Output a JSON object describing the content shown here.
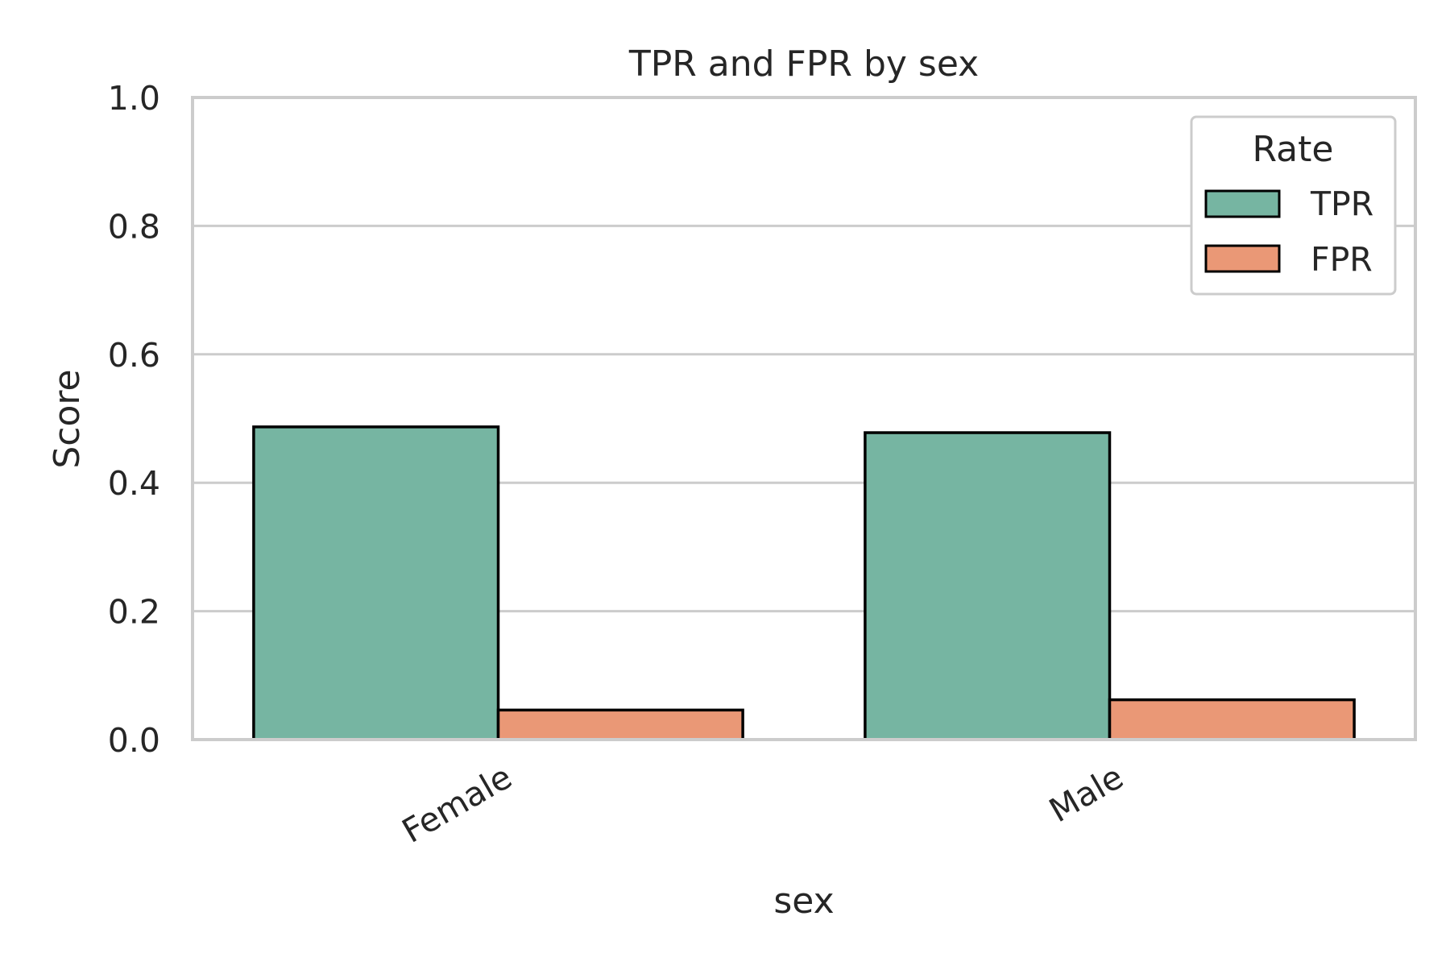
{
  "chart_data": {
    "type": "bar",
    "title": "TPR and FPR by sex",
    "xlabel": "sex",
    "ylabel": "Score",
    "categories": [
      "Female",
      "Male"
    ],
    "series": [
      {
        "name": "TPR",
        "values": [
          0.487,
          0.478
        ],
        "color": "#76b5a2"
      },
      {
        "name": "FPR",
        "values": [
          0.046,
          0.062
        ],
        "color": "#ea9876"
      }
    ],
    "ylim": [
      0,
      1.0
    ],
    "yticks": [
      "0.0",
      "0.2",
      "0.4",
      "0.6",
      "0.8",
      "1.0"
    ],
    "legend": {
      "title": "Rate",
      "placement": "top-right"
    },
    "grid": "horizontal"
  }
}
